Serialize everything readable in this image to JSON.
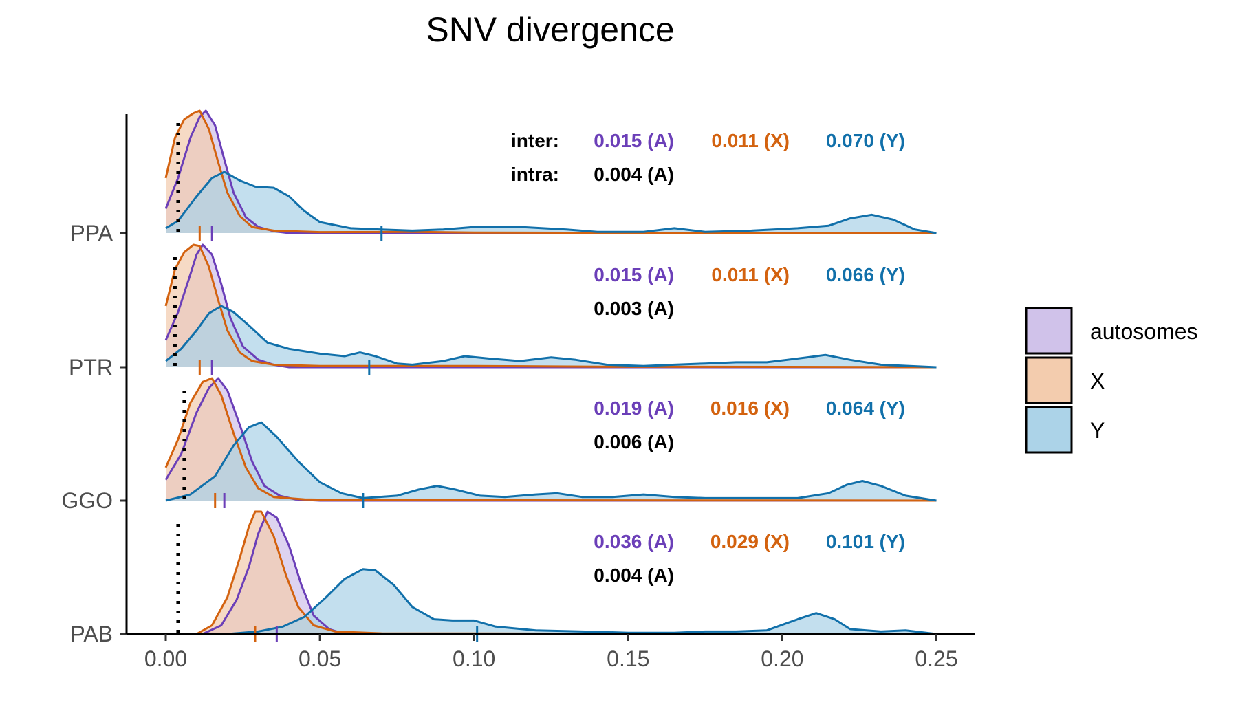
{
  "chart_data": {
    "type": "area",
    "title": "SNV divergence",
    "xlabel": "",
    "ylabel": "",
    "xlim": [
      0.0,
      0.25
    ],
    "x_ticks": [
      "0.00",
      "0.05",
      "0.10",
      "0.15",
      "0.20",
      "0.25"
    ],
    "x_tick_values": [
      0.0,
      0.05,
      0.1,
      0.15,
      0.2,
      0.25
    ],
    "grid": false,
    "legend_position": "right",
    "colors": {
      "autosomes": {
        "fill": "#d0c2ea",
        "line": "#6b3fb8"
      },
      "X": {
        "fill": "#f3ccae",
        "line": "#d3620f"
      },
      "Y": {
        "fill": "#acd3e8",
        "line": "#1170aa"
      },
      "text_black": "#000000"
    },
    "legend": [
      {
        "key": "autosomes",
        "label": "autosomes"
      },
      {
        "key": "X",
        "label": "X"
      },
      {
        "key": "Y",
        "label": "Y"
      }
    ],
    "row_labels": {
      "inter": "inter:",
      "intra": "intra:"
    },
    "species": [
      {
        "name": "PPA",
        "intra_value": 0.004,
        "inter_text": {
          "A": "0.015 (A)",
          "X": "0.011 (X)",
          "Y": "0.070 (Y)"
        },
        "intra_text": "0.004 (A)",
        "medians": {
          "autosomes": 0.015,
          "X": 0.011,
          "Y": 0.07
        },
        "density": {
          "autosomes": [
            [
              0.0,
              0.2
            ],
            [
              0.004,
              0.45
            ],
            [
              0.008,
              0.78
            ],
            [
              0.011,
              0.95
            ],
            [
              0.013,
              1.0
            ],
            [
              0.016,
              0.88
            ],
            [
              0.019,
              0.6
            ],
            [
              0.022,
              0.33
            ],
            [
              0.026,
              0.13
            ],
            [
              0.03,
              0.05
            ],
            [
              0.035,
              0.015
            ],
            [
              0.04,
              0.0
            ],
            [
              0.25,
              0.0
            ]
          ],
          "X": [
            [
              0.0,
              0.45
            ],
            [
              0.003,
              0.78
            ],
            [
              0.006,
              0.93
            ],
            [
              0.009,
              0.98
            ],
            [
              0.011,
              1.0
            ],
            [
              0.014,
              0.85
            ],
            [
              0.017,
              0.58
            ],
            [
              0.02,
              0.33
            ],
            [
              0.024,
              0.14
            ],
            [
              0.028,
              0.05
            ],
            [
              0.035,
              0.02
            ],
            [
              0.05,
              0.008
            ],
            [
              0.08,
              0.01
            ],
            [
              0.1,
              0.004
            ],
            [
              0.13,
              0.003
            ],
            [
              0.17,
              0.002
            ],
            [
              0.22,
              0.002
            ],
            [
              0.25,
              0.0
            ]
          ],
          "Y": [
            [
              0.0,
              0.04
            ],
            [
              0.004,
              0.1
            ],
            [
              0.01,
              0.3
            ],
            [
              0.015,
              0.45
            ],
            [
              0.019,
              0.5
            ],
            [
              0.024,
              0.43
            ],
            [
              0.029,
              0.38
            ],
            [
              0.035,
              0.37
            ],
            [
              0.04,
              0.3
            ],
            [
              0.045,
              0.18
            ],
            [
              0.05,
              0.09
            ],
            [
              0.06,
              0.04
            ],
            [
              0.07,
              0.03
            ],
            [
              0.08,
              0.02
            ],
            [
              0.09,
              0.03
            ],
            [
              0.1,
              0.05
            ],
            [
              0.115,
              0.05
            ],
            [
              0.13,
              0.03
            ],
            [
              0.14,
              0.01
            ],
            [
              0.155,
              0.01
            ],
            [
              0.165,
              0.04
            ],
            [
              0.175,
              0.01
            ],
            [
              0.19,
              0.02
            ],
            [
              0.205,
              0.04
            ],
            [
              0.215,
              0.06
            ],
            [
              0.222,
              0.12
            ],
            [
              0.229,
              0.15
            ],
            [
              0.236,
              0.11
            ],
            [
              0.243,
              0.03
            ],
            [
              0.25,
              0.0
            ]
          ]
        }
      },
      {
        "name": "PTR",
        "intra_value": 0.003,
        "inter_text": {
          "A": "0.015 (A)",
          "X": "0.011 (X)",
          "Y": "0.066 (Y)"
        },
        "intra_text": "0.003 (A)",
        "medians": {
          "autosomes": 0.015,
          "X": 0.011,
          "Y": 0.066
        },
        "density": {
          "autosomes": [
            [
              0.0,
              0.22
            ],
            [
              0.004,
              0.45
            ],
            [
              0.008,
              0.76
            ],
            [
              0.01,
              0.92
            ],
            [
              0.012,
              1.0
            ],
            [
              0.015,
              0.92
            ],
            [
              0.018,
              0.68
            ],
            [
              0.021,
              0.4
            ],
            [
              0.025,
              0.17
            ],
            [
              0.03,
              0.06
            ],
            [
              0.035,
              0.02
            ],
            [
              0.04,
              0.0
            ],
            [
              0.25,
              0.0
            ]
          ],
          "X": [
            [
              0.0,
              0.5
            ],
            [
              0.003,
              0.8
            ],
            [
              0.006,
              0.94
            ],
            [
              0.009,
              1.0
            ],
            [
              0.011,
              0.99
            ],
            [
              0.014,
              0.82
            ],
            [
              0.017,
              0.55
            ],
            [
              0.02,
              0.3
            ],
            [
              0.024,
              0.12
            ],
            [
              0.028,
              0.05
            ],
            [
              0.035,
              0.02
            ],
            [
              0.05,
              0.01
            ],
            [
              0.08,
              0.01
            ],
            [
              0.1,
              0.01
            ],
            [
              0.14,
              0.004
            ],
            [
              0.2,
              0.003
            ],
            [
              0.25,
              0.0
            ]
          ],
          "Y": [
            [
              0.0,
              0.05
            ],
            [
              0.005,
              0.15
            ],
            [
              0.01,
              0.3
            ],
            [
              0.014,
              0.44
            ],
            [
              0.018,
              0.5
            ],
            [
              0.022,
              0.45
            ],
            [
              0.027,
              0.34
            ],
            [
              0.033,
              0.2
            ],
            [
              0.04,
              0.15
            ],
            [
              0.05,
              0.11
            ],
            [
              0.058,
              0.09
            ],
            [
              0.063,
              0.12
            ],
            [
              0.068,
              0.09
            ],
            [
              0.075,
              0.03
            ],
            [
              0.08,
              0.02
            ],
            [
              0.09,
              0.05
            ],
            [
              0.097,
              0.09
            ],
            [
              0.105,
              0.07
            ],
            [
              0.115,
              0.05
            ],
            [
              0.125,
              0.08
            ],
            [
              0.133,
              0.06
            ],
            [
              0.143,
              0.02
            ],
            [
              0.155,
              0.01
            ],
            [
              0.165,
              0.02
            ],
            [
              0.175,
              0.03
            ],
            [
              0.185,
              0.04
            ],
            [
              0.195,
              0.04
            ],
            [
              0.208,
              0.08
            ],
            [
              0.214,
              0.1
            ],
            [
              0.222,
              0.06
            ],
            [
              0.232,
              0.02
            ],
            [
              0.25,
              0.0
            ]
          ]
        }
      },
      {
        "name": "GGO",
        "intra_value": 0.006,
        "inter_text": {
          "A": "0.019 (A)",
          "X": "0.016 (X)",
          "Y": "0.064 (Y)"
        },
        "intra_text": "0.006 (A)",
        "medians": {
          "autosomes": 0.019,
          "X": 0.016,
          "Y": 0.064
        },
        "density": {
          "autosomes": [
            [
              0.0,
              0.17
            ],
            [
              0.005,
              0.38
            ],
            [
              0.01,
              0.72
            ],
            [
              0.014,
              0.92
            ],
            [
              0.017,
              1.0
            ],
            [
              0.02,
              0.9
            ],
            [
              0.024,
              0.62
            ],
            [
              0.028,
              0.32
            ],
            [
              0.032,
              0.12
            ],
            [
              0.037,
              0.04
            ],
            [
              0.042,
              0.01
            ],
            [
              0.05,
              0.0
            ],
            [
              0.25,
              0.0
            ]
          ],
          "X": [
            [
              0.0,
              0.27
            ],
            [
              0.004,
              0.5
            ],
            [
              0.008,
              0.8
            ],
            [
              0.012,
              0.97
            ],
            [
              0.015,
              1.0
            ],
            [
              0.018,
              0.86
            ],
            [
              0.022,
              0.55
            ],
            [
              0.026,
              0.27
            ],
            [
              0.03,
              0.1
            ],
            [
              0.035,
              0.03
            ],
            [
              0.045,
              0.01
            ],
            [
              0.06,
              0.005
            ],
            [
              0.09,
              0.003
            ],
            [
              0.15,
              0.002
            ],
            [
              0.25,
              0.0
            ]
          ],
          "Y": [
            [
              0.0,
              0.0
            ],
            [
              0.008,
              0.05
            ],
            [
              0.016,
              0.2
            ],
            [
              0.022,
              0.45
            ],
            [
              0.027,
              0.6
            ],
            [
              0.031,
              0.64
            ],
            [
              0.036,
              0.52
            ],
            [
              0.043,
              0.32
            ],
            [
              0.05,
              0.15
            ],
            [
              0.057,
              0.06
            ],
            [
              0.064,
              0.02
            ],
            [
              0.075,
              0.04
            ],
            [
              0.082,
              0.09
            ],
            [
              0.088,
              0.12
            ],
            [
              0.094,
              0.09
            ],
            [
              0.102,
              0.04
            ],
            [
              0.11,
              0.03
            ],
            [
              0.12,
              0.05
            ],
            [
              0.127,
              0.06
            ],
            [
              0.135,
              0.03
            ],
            [
              0.145,
              0.03
            ],
            [
              0.155,
              0.05
            ],
            [
              0.165,
              0.03
            ],
            [
              0.175,
              0.02
            ],
            [
              0.19,
              0.02
            ],
            [
              0.205,
              0.02
            ],
            [
              0.215,
              0.06
            ],
            [
              0.221,
              0.13
            ],
            [
              0.226,
              0.16
            ],
            [
              0.232,
              0.12
            ],
            [
              0.24,
              0.04
            ],
            [
              0.25,
              0.0
            ]
          ]
        }
      },
      {
        "name": "PAB",
        "intra_value": 0.004,
        "inter_text": {
          "A": "0.036 (A)",
          "X": "0.029 (X)",
          "Y": "0.101 (Y)"
        },
        "intra_text": "0.004 (A)",
        "medians": {
          "autosomes": 0.036,
          "X": 0.029,
          "Y": 0.101
        },
        "density": {
          "autosomes": [
            [
              0.012,
              0.0
            ],
            [
              0.018,
              0.07
            ],
            [
              0.023,
              0.28
            ],
            [
              0.027,
              0.55
            ],
            [
              0.03,
              0.82
            ],
            [
              0.033,
              1.0
            ],
            [
              0.036,
              0.95
            ],
            [
              0.04,
              0.72
            ],
            [
              0.044,
              0.4
            ],
            [
              0.048,
              0.15
            ],
            [
              0.053,
              0.04
            ],
            [
              0.058,
              0.0
            ],
            [
              0.25,
              0.0
            ]
          ],
          "X": [
            [
              0.01,
              0.0
            ],
            [
              0.015,
              0.07
            ],
            [
              0.02,
              0.3
            ],
            [
              0.024,
              0.62
            ],
            [
              0.027,
              0.88
            ],
            [
              0.029,
              1.0
            ],
            [
              0.031,
              1.0
            ],
            [
              0.035,
              0.8
            ],
            [
              0.039,
              0.48
            ],
            [
              0.043,
              0.22
            ],
            [
              0.048,
              0.07
            ],
            [
              0.055,
              0.02
            ],
            [
              0.07,
              0.005
            ],
            [
              0.1,
              0.004
            ],
            [
              0.15,
              0.002
            ],
            [
              0.25,
              0.0
            ]
          ],
          "Y": [
            [
              0.0,
              0.0
            ],
            [
              0.02,
              0.0
            ],
            [
              0.03,
              0.02
            ],
            [
              0.038,
              0.06
            ],
            [
              0.045,
              0.14
            ],
            [
              0.052,
              0.3
            ],
            [
              0.058,
              0.45
            ],
            [
              0.064,
              0.53
            ],
            [
              0.068,
              0.52
            ],
            [
              0.074,
              0.4
            ],
            [
              0.08,
              0.22
            ],
            [
              0.087,
              0.12
            ],
            [
              0.093,
              0.11
            ],
            [
              0.1,
              0.11
            ],
            [
              0.107,
              0.06
            ],
            [
              0.12,
              0.03
            ],
            [
              0.135,
              0.02
            ],
            [
              0.15,
              0.01
            ],
            [
              0.165,
              0.01
            ],
            [
              0.175,
              0.02
            ],
            [
              0.185,
              0.02
            ],
            [
              0.195,
              0.03
            ],
            [
              0.205,
              0.12
            ],
            [
              0.211,
              0.17
            ],
            [
              0.217,
              0.12
            ],
            [
              0.222,
              0.04
            ],
            [
              0.232,
              0.02
            ],
            [
              0.24,
              0.03
            ],
            [
              0.25,
              0.0
            ]
          ]
        }
      }
    ]
  }
}
